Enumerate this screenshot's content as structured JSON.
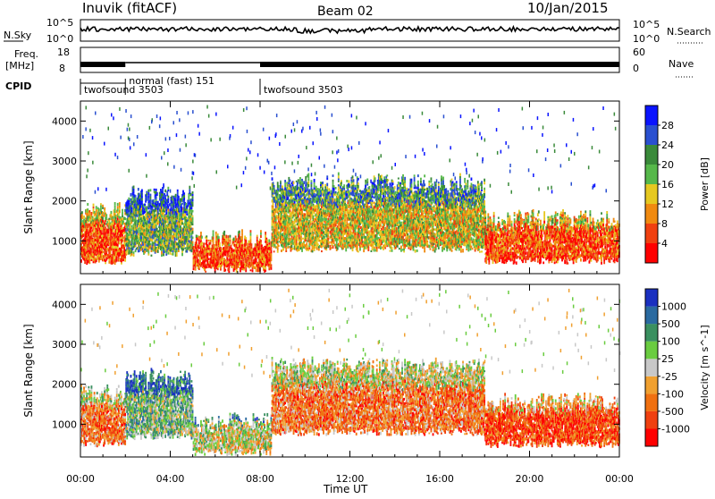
{
  "header": {
    "station": "Inuvik (fitACF)",
    "beam": "Beam 02",
    "date": "10/Jan/2015"
  },
  "strips": {
    "nsky_label": "N.Sky",
    "nsky_ticks": [
      "10^5",
      "10^0"
    ],
    "nsearch_label": "N.Search",
    "nsearch_ticks": [
      "10^5",
      "10^0"
    ],
    "freq_label": "Freq.",
    "freq_unit": "[MHz]",
    "freq_ticks": [
      "18",
      "8"
    ],
    "nave_label": "Nave",
    "nave_ticks": [
      "60",
      "0"
    ],
    "cpid_label": "CPID",
    "cpid_segments": [
      {
        "label": "twofsound 3503",
        "start_h": 0,
        "end_h": 2
      },
      {
        "label": "normal (fast) 151",
        "start_h": 2,
        "end_h": 8
      },
      {
        "label": "twofsound 3503",
        "start_h": 8,
        "end_h": 24
      }
    ]
  },
  "chart_data": [
    {
      "type": "heatmap",
      "title": "Power",
      "xlabel": "",
      "ylabel": "Slant Range [km]",
      "x_ticks": [
        "00:00",
        "04:00",
        "08:00",
        "12:00",
        "16:00",
        "20:00",
        "00:00"
      ],
      "y_ticks": [
        "1000",
        "2000",
        "3000",
        "4000"
      ],
      "xlim": [
        0,
        24
      ],
      "ylim": [
        180,
        4500
      ],
      "colorbar": {
        "label": "Power [dB]",
        "ticks": [
          "4",
          "8",
          "12",
          "16",
          "20",
          "24",
          "28"
        ],
        "colors": [
          "#0a14ff",
          "#2a50d0",
          "#3a8a3a",
          "#56b84a",
          "#e6c820",
          "#f08a10",
          "#f04010",
          "#ff0000"
        ]
      },
      "echo_bands": [
        {
          "start_h": 0.0,
          "end_h": 2.0,
          "r_low": 500,
          "r_high": 1700,
          "level": 6
        },
        {
          "start_h": 2.0,
          "end_h": 5.0,
          "r_low": 700,
          "r_high": 2100,
          "level": 3
        },
        {
          "start_h": 5.0,
          "end_h": 8.5,
          "r_low": 300,
          "r_high": 1000,
          "level": 6
        },
        {
          "start_h": 8.5,
          "end_h": 18.0,
          "r_low": 800,
          "r_high": 2400,
          "level": 4
        },
        {
          "start_h": 18.0,
          "end_h": 24.0,
          "r_low": 500,
          "r_high": 1500,
          "level": 6
        }
      ]
    },
    {
      "type": "heatmap",
      "title": "Velocity",
      "xlabel": "Time UT",
      "ylabel": "Slant Range [km]",
      "x_ticks": [
        "00:00",
        "04:00",
        "08:00",
        "12:00",
        "16:00",
        "20:00",
        "00:00"
      ],
      "y_ticks": [
        "1000",
        "2000",
        "3000",
        "4000"
      ],
      "xlim": [
        0,
        24
      ],
      "ylim": [
        180,
        4500
      ],
      "colorbar": {
        "label": "Velocity [m s^-1]",
        "ticks": [
          "1000",
          "500",
          "100",
          "25",
          "-25",
          "-100",
          "-500",
          "-1000"
        ],
        "colors": [
          "#1a30c0",
          "#2a6aa0",
          "#3a9060",
          "#6acc40",
          "#c8c8c8",
          "#f0a030",
          "#f07010",
          "#f04010",
          "#ff0000"
        ]
      },
      "echo_bands": [
        {
          "start_h": 0.0,
          "end_h": 2.0,
          "r_low": 500,
          "r_high": 1700,
          "level": 6
        },
        {
          "start_h": 2.0,
          "end_h": 5.0,
          "r_low": 700,
          "r_high": 2100,
          "level": 3
        },
        {
          "start_h": 5.0,
          "end_h": 8.5,
          "r_low": 300,
          "r_high": 1000,
          "level": 4
        },
        {
          "start_h": 8.5,
          "end_h": 18.0,
          "r_low": 800,
          "r_high": 2400,
          "level": 6
        },
        {
          "start_h": 18.0,
          "end_h": 24.0,
          "r_low": 500,
          "r_high": 1500,
          "level": 7
        }
      ]
    }
  ]
}
